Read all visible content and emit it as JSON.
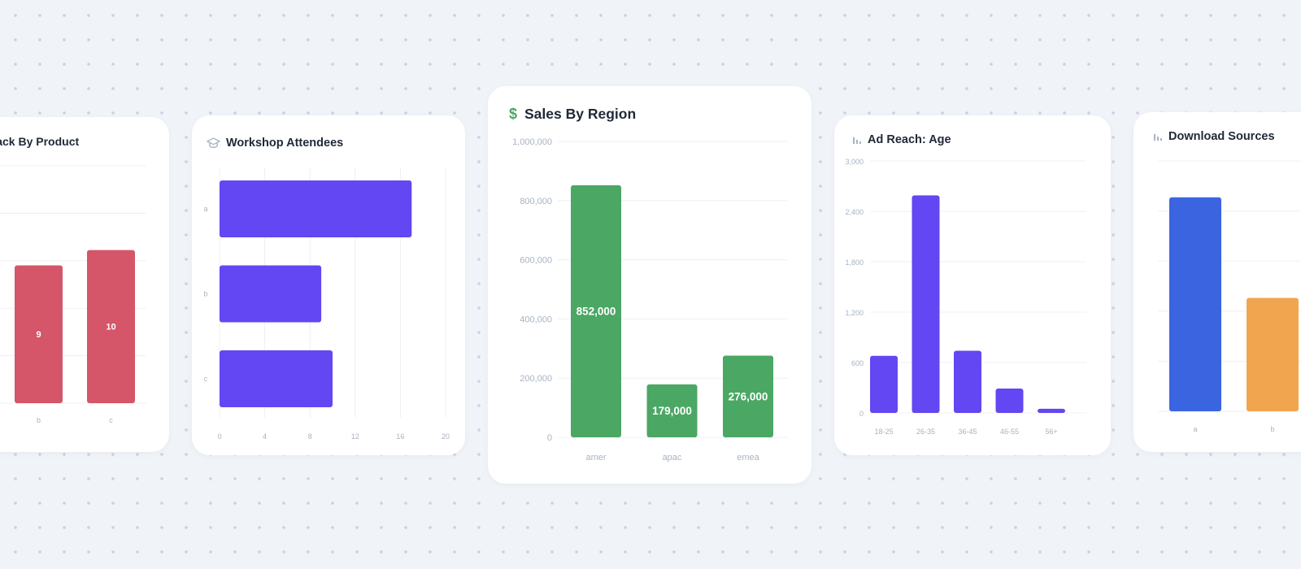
{
  "cards": {
    "feedback": {
      "title": "Feedback By Product",
      "icon": "none"
    },
    "workshop": {
      "title": "Workshop Attendees",
      "icon": "graduation-cap-icon"
    },
    "sales": {
      "title": "Sales By Region",
      "icon": "dollar-icon"
    },
    "adreach": {
      "title": "Ad Reach: Age",
      "icon": "bar-chart-icon"
    },
    "downloads": {
      "title": "Download Sources",
      "icon": "bar-chart-icon"
    }
  },
  "colors": {
    "feedback": "#d45668",
    "workshop": "#6247f2",
    "sales": "#4ba764",
    "adreach": "#6247f2",
    "downloads_a": "#3a64e0",
    "downloads_b": "#f2a54f"
  },
  "chart_data": [
    {
      "id": "feedback",
      "type": "bar",
      "title": "Feedback By Product",
      "categories": [
        "b",
        "c"
      ],
      "values": [
        9,
        10
      ],
      "data_labels": [
        "9",
        "10"
      ],
      "grid": true
    },
    {
      "id": "workshop",
      "type": "bar",
      "orientation": "horizontal",
      "title": "Workshop Attendees",
      "categories": [
        "a",
        "b",
        "c"
      ],
      "values": [
        17,
        9,
        10
      ],
      "xlim": [
        0,
        20
      ],
      "x_ticks": [
        "0",
        "4",
        "8",
        "12",
        "16",
        "20"
      ],
      "grid": true
    },
    {
      "id": "sales",
      "type": "bar",
      "title": "Sales By Region",
      "categories": [
        "amer",
        "apac",
        "emea"
      ],
      "values": [
        852000,
        179000,
        276000
      ],
      "data_labels": [
        "852,000",
        "179,000",
        "276,000"
      ],
      "ylim": [
        0,
        1000000
      ],
      "y_ticks": [
        "0",
        "200,000",
        "400,000",
        "600,000",
        "800,000",
        "1,000,000"
      ],
      "grid": true
    },
    {
      "id": "adreach",
      "type": "bar",
      "title": "Ad Reach: Age",
      "categories": [
        "18-25",
        "26-35",
        "36-45",
        "46-55",
        "56+"
      ],
      "values": [
        680,
        2590,
        740,
        290,
        50
      ],
      "ylim": [
        0,
        3000
      ],
      "y_ticks": [
        "0",
        "600",
        "1,200",
        "1,800",
        "2,400",
        "3,000"
      ],
      "grid": true
    },
    {
      "id": "downloads",
      "type": "bar",
      "title": "Download Sources",
      "categories": [
        "a",
        "b"
      ],
      "values": [
        100,
        53
      ],
      "grid": true
    }
  ]
}
